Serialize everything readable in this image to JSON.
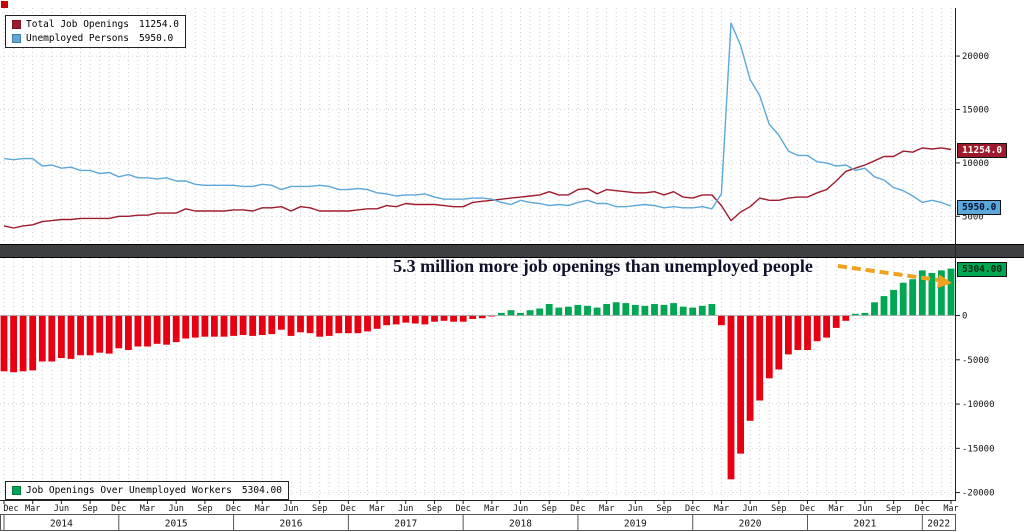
{
  "legend_top": {
    "items": [
      {
        "label": "Total Job Openings",
        "value": "11254.0",
        "color": "#9e1b2e"
      },
      {
        "label": "Unemployed Persons",
        "value": "5950.0",
        "color": "#5ca8d8"
      }
    ]
  },
  "legend_bottom": {
    "items": [
      {
        "label": "Job Openings Over Unemployed Workers",
        "value": "5304.00",
        "color": "#00a651"
      }
    ]
  },
  "badges": {
    "openings": "11254.0",
    "unemployed": "5950.0",
    "spread": "5304.00"
  },
  "annotation": {
    "text": "5.3 million more job openings than unemployed people",
    "arrow_color": "#f0a11e"
  },
  "chart_data": {
    "type": "line+bar",
    "annotation": "5.3 million more job openings than unemployed people",
    "x_start": "2013-12",
    "x_months": 100,
    "x_tick_labels": {
      "3": "Mar",
      "6": "Jun",
      "9": "Sep",
      "12": "Dec"
    },
    "years": [
      "2014",
      "2015",
      "2016",
      "2017",
      "2018",
      "2019",
      "2020",
      "2021",
      "2022"
    ],
    "top_panel": {
      "type": "line",
      "ylim": [
        2500,
        24500
      ],
      "yticks": [
        5000,
        10000,
        15000,
        20000
      ],
      "grid": "dotted",
      "legend_position": "top-left",
      "series": [
        {
          "name": "Total Job Openings",
          "color": "#9e1b2e",
          "last": 11254.0,
          "values": [
            4100,
            3900,
            4100,
            4200,
            4500,
            4600,
            4700,
            4700,
            4800,
            4800,
            4800,
            4800,
            5000,
            5000,
            5100,
            5100,
            5300,
            5300,
            5300,
            5700,
            5500,
            5500,
            5500,
            5500,
            5600,
            5600,
            5500,
            5800,
            5800,
            5900,
            5500,
            5900,
            5800,
            5500,
            5500,
            5500,
            5500,
            5600,
            5700,
            5700,
            6000,
            5900,
            6200,
            6100,
            6100,
            6100,
            6000,
            5900,
            5900,
            6300,
            6400,
            6500,
            6600,
            6700,
            6800,
            6900,
            7000,
            7300,
            7000,
            7000,
            7500,
            7600,
            7100,
            7500,
            7400,
            7300,
            7200,
            7200,
            7300,
            7000,
            7300,
            6800,
            6700,
            7000,
            7000,
            6000,
            4600,
            5400,
            5900,
            6700,
            6500,
            6500,
            6700,
            6800,
            6800,
            7200,
            7500,
            8300,
            9200,
            9500,
            9800,
            10200,
            10600,
            10600,
            11100,
            11000,
            11400,
            11300,
            11400,
            11254
          ]
        },
        {
          "name": "Unemployed Persons",
          "color": "#5ca8d8",
          "last": 5950.0,
          "values": [
            10400,
            10300,
            10400,
            10400,
            9700,
            9800,
            9500,
            9600,
            9300,
            9300,
            9000,
            9100,
            8700,
            8900,
            8600,
            8600,
            8500,
            8600,
            8300,
            8300,
            8000,
            7900,
            7900,
            7900,
            7900,
            7800,
            7800,
            8000,
            7900,
            7500,
            7800,
            7800,
            7800,
            7900,
            7800,
            7500,
            7500,
            7600,
            7500,
            7200,
            7100,
            6900,
            7000,
            7000,
            7100,
            6800,
            6600,
            6600,
            6600,
            6700,
            6700,
            6600,
            6300,
            6100,
            6500,
            6300,
            6200,
            6000,
            6100,
            6000,
            6300,
            6500,
            6200,
            6200,
            5900,
            5900,
            6000,
            6100,
            6000,
            5800,
            5900,
            5800,
            5800,
            5900,
            5700,
            7100,
            23100,
            21000,
            17800,
            16300,
            13600,
            12600,
            11100,
            10700,
            10700,
            10100,
            10000,
            9700,
            9800,
            9300,
            9500,
            8700,
            8400,
            7700,
            7400,
            6900,
            6300,
            6500,
            6300,
            5950
          ]
        }
      ]
    },
    "bottom_panel": {
      "type": "bar",
      "ylim": [
        -20500,
        6500
      ],
      "yticks": [
        0,
        -5000,
        -10000,
        -15000,
        -20000
      ],
      "grid": "dotted",
      "legend_position": "bottom-left",
      "series": [
        {
          "name": "Job Openings Over Unemployed Workers",
          "positive_color": "#00a651",
          "negative_color": "#e60012",
          "last": 5304.0,
          "derived": "openings - unemployed",
          "values": [
            -6300,
            -6400,
            -6300,
            -6200,
            -5200,
            -5200,
            -4800,
            -4900,
            -4500,
            -4500,
            -4200,
            -4300,
            -3700,
            -3900,
            -3500,
            -3500,
            -3200,
            -3300,
            -3000,
            -2600,
            -2500,
            -2400,
            -2400,
            -2400,
            -2300,
            -2200,
            -2300,
            -2200,
            -2100,
            -1600,
            -2300,
            -1900,
            -2000,
            -2400,
            -2300,
            -2000,
            -2000,
            -2000,
            -1800,
            -1500,
            -1100,
            -1000,
            -800,
            -900,
            -1000,
            -700,
            -600,
            -700,
            -700,
            -400,
            -300,
            -100,
            300,
            600,
            300,
            600,
            800,
            1300,
            900,
            1000,
            1200,
            1100,
            900,
            1300,
            1500,
            1400,
            1200,
            1100,
            1300,
            1200,
            1400,
            1000,
            900,
            1100,
            1300,
            -1100,
            -18500,
            -15600,
            -11900,
            -9600,
            -7100,
            -6100,
            -4400,
            -3900,
            -3900,
            -2900,
            -2500,
            -1400,
            -600,
            200,
            300,
            1500,
            2200,
            2900,
            3700,
            4100,
            5100,
            4800,
            5100,
            5304
          ]
        }
      ]
    }
  }
}
